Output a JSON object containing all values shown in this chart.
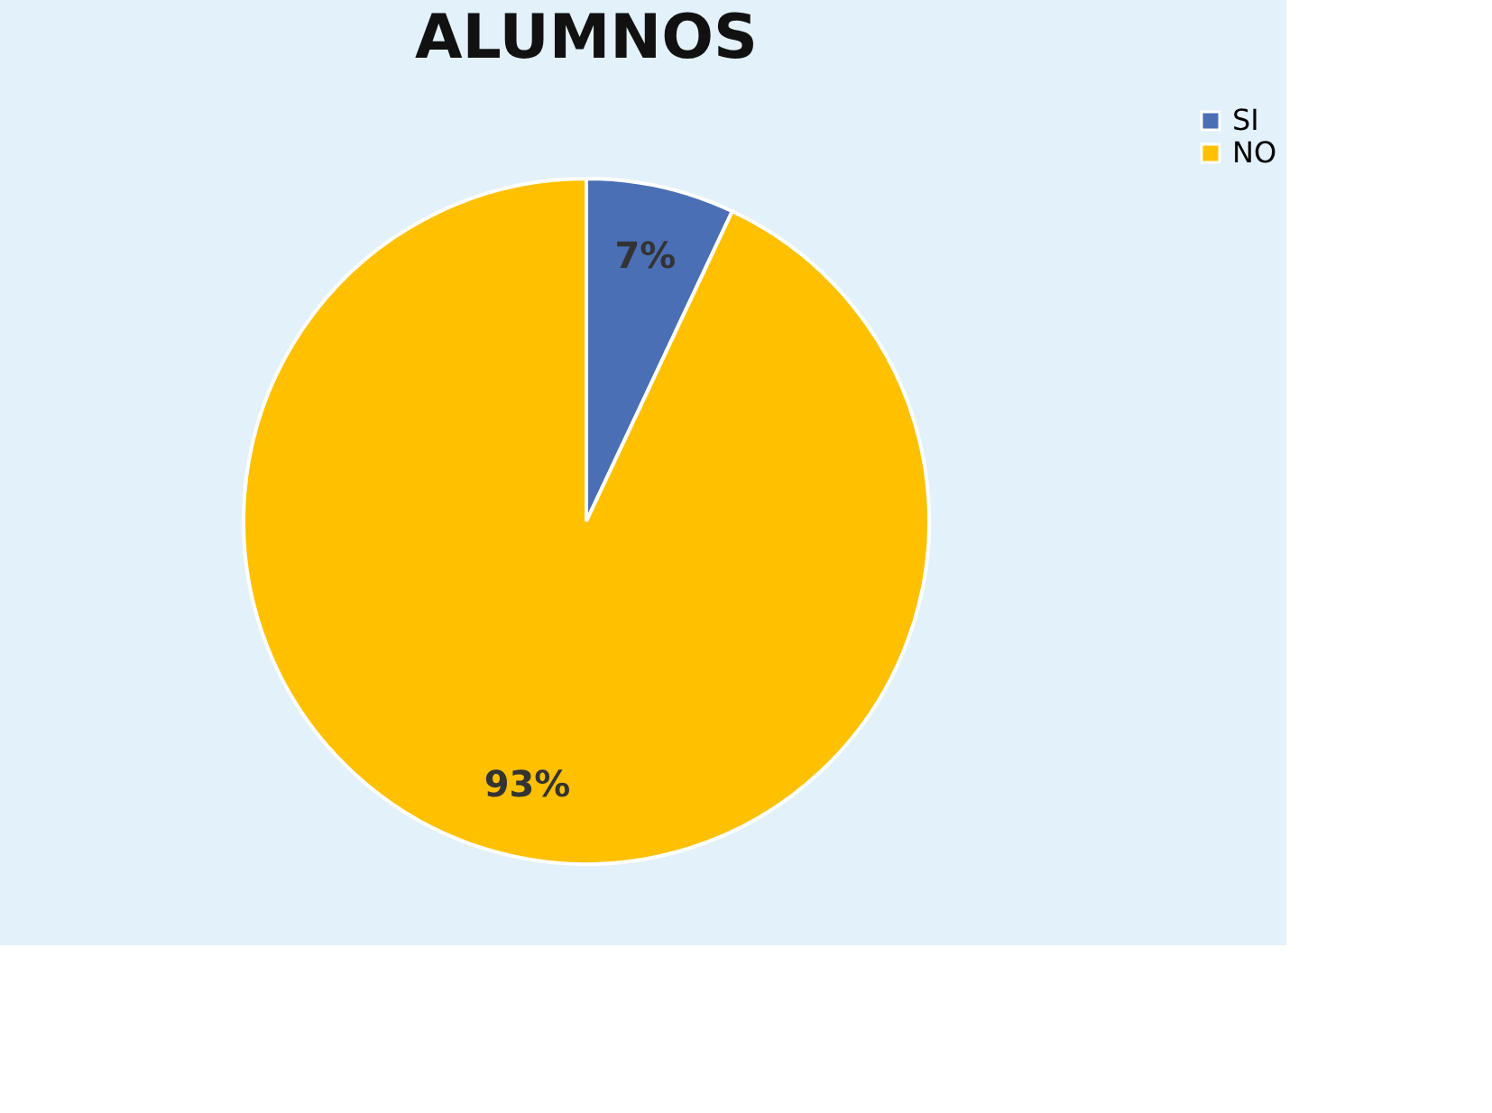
{
  "chart_data": {
    "type": "pie",
    "title": "ALUMNOS",
    "categories": [
      "SI",
      "NO"
    ],
    "values": [
      7,
      93
    ],
    "colors": [
      "#4a6fb5",
      "#ffc000"
    ],
    "value_labels": [
      "7%",
      "93%"
    ],
    "legend": "right"
  }
}
